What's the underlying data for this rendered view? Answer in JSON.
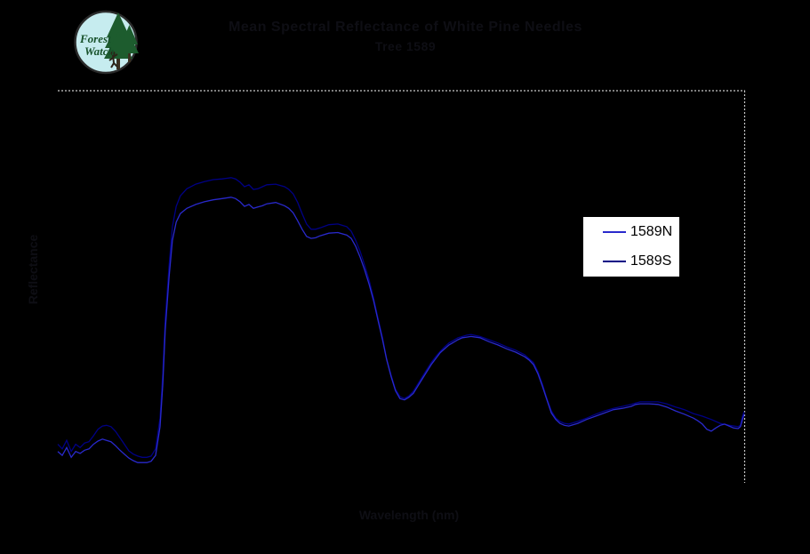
{
  "logo": {
    "name": "Forest Watch logo",
    "text_line1": "Forest",
    "text_line2": "Watch",
    "circle_fill": "#c6ecef",
    "circle_stroke": "#2b2b2b",
    "tree_color": "#1d5c2e",
    "trunk_color": "#3a2f20",
    "text_color": "#17512a"
  },
  "titles": {
    "line1": "Mean Spectral Reflectance of White Pine Needles",
    "line2": "Tree 1589",
    "ink_color": "#0e0e14"
  },
  "axes": {
    "x_label": "Wavelength (nm)",
    "y_label": "Reflectance",
    "border_color": "#c9c9c9"
  },
  "legend": {
    "entries": [
      {
        "label": "1589N",
        "color": "#2929cc"
      },
      {
        "label": "1589S",
        "color": "#000085"
      }
    ]
  },
  "chart_data": {
    "type": "line",
    "title": "Mean Spectral Reflectance of White Pine Needles — Tree 1589",
    "xlabel": "Wavelength (nm)",
    "ylabel": "Reflectance",
    "xlim": [
      400,
      2400
    ],
    "ylim": [
      0,
      60
    ],
    "grid": false,
    "legend_position": "right-middle",
    "series": [
      {
        "name": "1589N",
        "color": "#2929cc",
        "points": [
          [
            400,
            4.8
          ],
          [
            413,
            4.2
          ],
          [
            426,
            5.4
          ],
          [
            439,
            3.9
          ],
          [
            452,
            4.8
          ],
          [
            465,
            4.5
          ],
          [
            478,
            5.0
          ],
          [
            491,
            5.2
          ],
          [
            504,
            5.9
          ],
          [
            517,
            6.4
          ],
          [
            530,
            6.7
          ],
          [
            542,
            6.5
          ],
          [
            555,
            6.3
          ],
          [
            568,
            5.7
          ],
          [
            581,
            5.0
          ],
          [
            594,
            4.4
          ],
          [
            607,
            3.8
          ],
          [
            620,
            3.4
          ],
          [
            633,
            3.1
          ],
          [
            646,
            3.1
          ],
          [
            659,
            3.1
          ],
          [
            672,
            3.3
          ],
          [
            685,
            4.2
          ],
          [
            698,
            8.6
          ],
          [
            706,
            15.1
          ],
          [
            713,
            23.3
          ],
          [
            724,
            31.4
          ],
          [
            734,
            37.1
          ],
          [
            745,
            39.9
          ],
          [
            757,
            41.2
          ],
          [
            776,
            42.0
          ],
          [
            802,
            42.6
          ],
          [
            827,
            43.0
          ],
          [
            853,
            43.3
          ],
          [
            879,
            43.5
          ],
          [
            905,
            43.7
          ],
          [
            918,
            43.5
          ],
          [
            931,
            43.0
          ],
          [
            944,
            42.3
          ],
          [
            957,
            42.6
          ],
          [
            970,
            42.0
          ],
          [
            983,
            42.2
          ],
          [
            996,
            42.4
          ],
          [
            1009,
            42.7
          ],
          [
            1035,
            42.9
          ],
          [
            1061,
            42.4
          ],
          [
            1073,
            42.0
          ],
          [
            1086,
            41.3
          ],
          [
            1099,
            40.1
          ],
          [
            1112,
            38.8
          ],
          [
            1125,
            37.7
          ],
          [
            1138,
            37.4
          ],
          [
            1151,
            37.5
          ],
          [
            1164,
            37.8
          ],
          [
            1190,
            38.2
          ],
          [
            1216,
            38.3
          ],
          [
            1242,
            37.9
          ],
          [
            1255,
            37.4
          ],
          [
            1268,
            36.2
          ],
          [
            1281,
            34.5
          ],
          [
            1294,
            32.6
          ],
          [
            1307,
            30.4
          ],
          [
            1320,
            27.9
          ],
          [
            1333,
            24.9
          ],
          [
            1346,
            21.9
          ],
          [
            1358,
            18.9
          ],
          [
            1371,
            16.3
          ],
          [
            1384,
            14.1
          ],
          [
            1397,
            12.9
          ],
          [
            1410,
            12.7
          ],
          [
            1423,
            13.1
          ],
          [
            1436,
            13.7
          ],
          [
            1449,
            14.8
          ],
          [
            1462,
            15.9
          ],
          [
            1475,
            17.0
          ],
          [
            1488,
            18.1
          ],
          [
            1501,
            19.0
          ],
          [
            1514,
            19.9
          ],
          [
            1527,
            20.5
          ],
          [
            1540,
            21.1
          ],
          [
            1553,
            21.5
          ],
          [
            1566,
            21.9
          ],
          [
            1579,
            22.2
          ],
          [
            1592,
            22.3
          ],
          [
            1604,
            22.4
          ],
          [
            1630,
            22.2
          ],
          [
            1656,
            21.6
          ],
          [
            1682,
            21.1
          ],
          [
            1708,
            20.5
          ],
          [
            1734,
            20.0
          ],
          [
            1760,
            19.3
          ],
          [
            1773,
            18.8
          ],
          [
            1786,
            18.1
          ],
          [
            1799,
            16.7
          ],
          [
            1812,
            14.8
          ],
          [
            1825,
            12.7
          ],
          [
            1838,
            10.7
          ],
          [
            1851,
            9.7
          ],
          [
            1863,
            9.1
          ],
          [
            1876,
            8.8
          ],
          [
            1889,
            8.7
          ],
          [
            1915,
            9.1
          ],
          [
            1941,
            9.7
          ],
          [
            1967,
            10.2
          ],
          [
            1993,
            10.7
          ],
          [
            2019,
            11.2
          ],
          [
            2045,
            11.4
          ],
          [
            2071,
            11.7
          ],
          [
            2084,
            12.0
          ],
          [
            2097,
            12.1
          ],
          [
            2123,
            12.1
          ],
          [
            2149,
            12.0
          ],
          [
            2174,
            11.6
          ],
          [
            2200,
            11.0
          ],
          [
            2226,
            10.5
          ],
          [
            2252,
            9.9
          ],
          [
            2265,
            9.5
          ],
          [
            2278,
            9.0
          ],
          [
            2291,
            8.2
          ],
          [
            2304,
            7.9
          ],
          [
            2317,
            8.4
          ],
          [
            2330,
            8.8
          ],
          [
            2343,
            9.0
          ],
          [
            2356,
            8.7
          ],
          [
            2369,
            8.4
          ],
          [
            2382,
            8.3
          ],
          [
            2389,
            8.6
          ],
          [
            2395,
            9.7
          ],
          [
            2400,
            10.5
          ]
        ]
      },
      {
        "name": "1589S",
        "color": "#000085",
        "points": [
          [
            400,
            5.9
          ],
          [
            413,
            5.2
          ],
          [
            426,
            6.5
          ],
          [
            439,
            4.8
          ],
          [
            452,
            5.9
          ],
          [
            465,
            5.4
          ],
          [
            478,
            6.1
          ],
          [
            491,
            6.3
          ],
          [
            504,
            7.2
          ],
          [
            517,
            8.2
          ],
          [
            530,
            8.7
          ],
          [
            542,
            8.8
          ],
          [
            555,
            8.6
          ],
          [
            568,
            7.9
          ],
          [
            581,
            6.9
          ],
          [
            594,
            5.9
          ],
          [
            607,
            4.9
          ],
          [
            620,
            4.4
          ],
          [
            633,
            4.1
          ],
          [
            646,
            3.9
          ],
          [
            659,
            3.9
          ],
          [
            672,
            4.1
          ],
          [
            685,
            5.2
          ],
          [
            698,
            9.9
          ],
          [
            706,
            16.7
          ],
          [
            713,
            24.9
          ],
          [
            724,
            33.1
          ],
          [
            734,
            39.2
          ],
          [
            745,
            42.3
          ],
          [
            757,
            43.9
          ],
          [
            776,
            45.0
          ],
          [
            802,
            45.7
          ],
          [
            827,
            46.1
          ],
          [
            853,
            46.4
          ],
          [
            879,
            46.5
          ],
          [
            905,
            46.7
          ],
          [
            918,
            46.5
          ],
          [
            931,
            46.0
          ],
          [
            944,
            45.3
          ],
          [
            957,
            45.6
          ],
          [
            970,
            44.9
          ],
          [
            983,
            45.0
          ],
          [
            996,
            45.3
          ],
          [
            1009,
            45.6
          ],
          [
            1035,
            45.7
          ],
          [
            1061,
            45.3
          ],
          [
            1073,
            44.9
          ],
          [
            1086,
            44.2
          ],
          [
            1099,
            42.9
          ],
          [
            1112,
            41.2
          ],
          [
            1125,
            39.6
          ],
          [
            1138,
            38.8
          ],
          [
            1151,
            38.8
          ],
          [
            1164,
            39.0
          ],
          [
            1190,
            39.5
          ],
          [
            1216,
            39.6
          ],
          [
            1242,
            39.2
          ],
          [
            1255,
            38.5
          ],
          [
            1268,
            37.1
          ],
          [
            1281,
            35.4
          ],
          [
            1294,
            33.3
          ],
          [
            1307,
            31.0
          ],
          [
            1320,
            28.3
          ],
          [
            1333,
            25.2
          ],
          [
            1346,
            22.2
          ],
          [
            1358,
            19.0
          ],
          [
            1371,
            16.5
          ],
          [
            1384,
            14.3
          ],
          [
            1397,
            13.2
          ],
          [
            1410,
            12.9
          ],
          [
            1423,
            13.3
          ],
          [
            1436,
            14.0
          ],
          [
            1449,
            15.1
          ],
          [
            1462,
            16.2
          ],
          [
            1475,
            17.3
          ],
          [
            1488,
            18.4
          ],
          [
            1501,
            19.3
          ],
          [
            1514,
            20.1
          ],
          [
            1527,
            20.8
          ],
          [
            1540,
            21.4
          ],
          [
            1553,
            21.8
          ],
          [
            1566,
            22.2
          ],
          [
            1579,
            22.4
          ],
          [
            1592,
            22.6
          ],
          [
            1604,
            22.7
          ],
          [
            1630,
            22.4
          ],
          [
            1656,
            21.9
          ],
          [
            1682,
            21.4
          ],
          [
            1708,
            20.8
          ],
          [
            1734,
            20.3
          ],
          [
            1760,
            19.6
          ],
          [
            1773,
            19.0
          ],
          [
            1786,
            18.4
          ],
          [
            1799,
            17.0
          ],
          [
            1812,
            15.1
          ],
          [
            1825,
            12.9
          ],
          [
            1838,
            11.0
          ],
          [
            1851,
            9.9
          ],
          [
            1863,
            9.4
          ],
          [
            1876,
            9.1
          ],
          [
            1889,
            9.0
          ],
          [
            1915,
            9.4
          ],
          [
            1941,
            9.9
          ],
          [
            1967,
            10.5
          ],
          [
            1993,
            11.0
          ],
          [
            2019,
            11.4
          ],
          [
            2045,
            11.7
          ],
          [
            2071,
            12.0
          ],
          [
            2084,
            12.2
          ],
          [
            2097,
            12.4
          ],
          [
            2123,
            12.4
          ],
          [
            2149,
            12.4
          ],
          [
            2174,
            12.1
          ],
          [
            2200,
            11.6
          ],
          [
            2226,
            11.2
          ],
          [
            2252,
            10.6
          ],
          [
            2278,
            10.2
          ],
          [
            2304,
            9.7
          ],
          [
            2330,
            9.1
          ],
          [
            2356,
            8.8
          ],
          [
            2382,
            8.6
          ],
          [
            2389,
            8.8
          ],
          [
            2395,
            10.2
          ],
          [
            2400,
            10.9
          ]
        ]
      }
    ]
  }
}
